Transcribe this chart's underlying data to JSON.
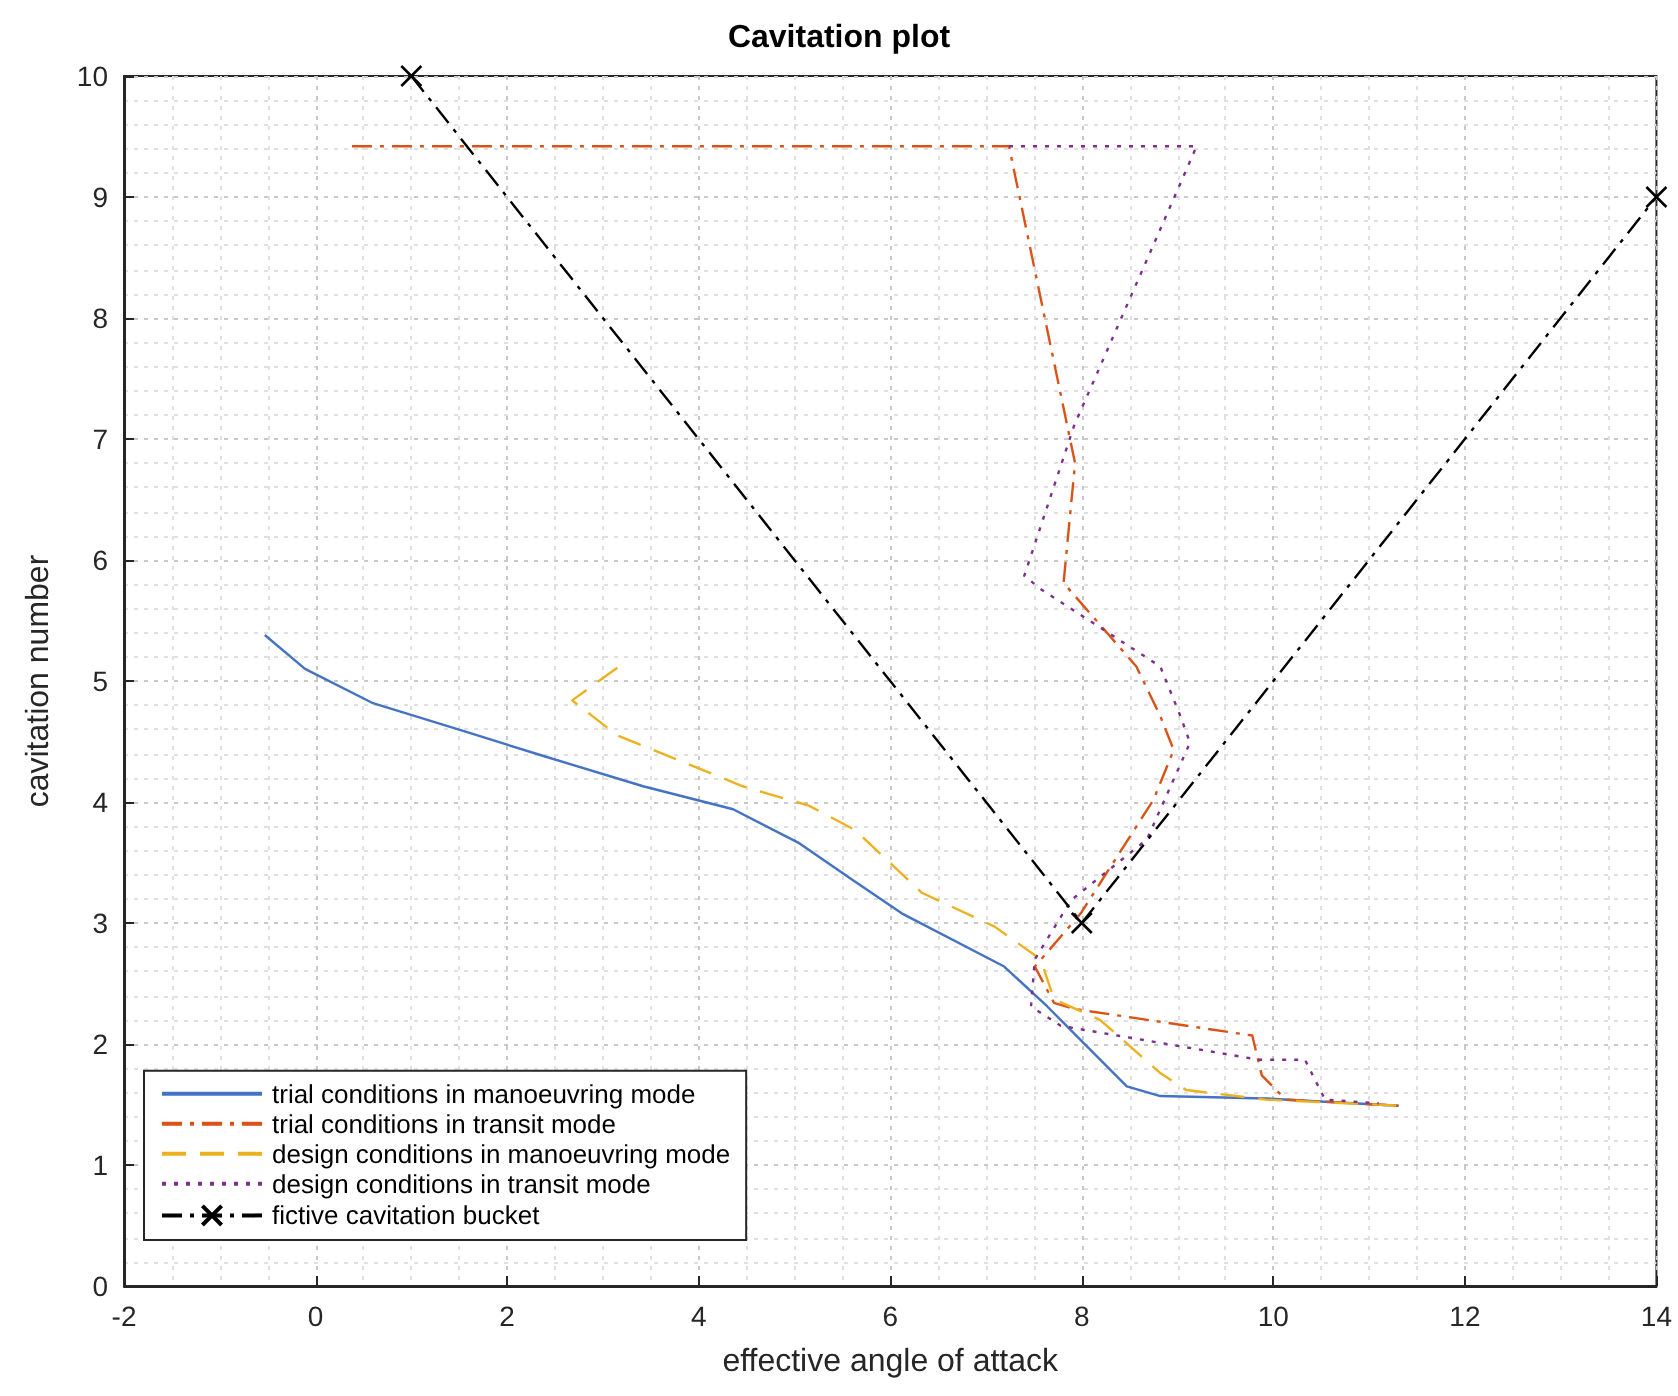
{
  "chart_data": {
    "type": "line",
    "title": "Cavitation plot",
    "xlabel": "effective angle of attack",
    "ylabel": "cavitation number",
    "xlim": [
      -2,
      14
    ],
    "xticks": [
      -2,
      0,
      2,
      4,
      6,
      8,
      10,
      12,
      14
    ],
    "ylim": [
      0,
      10
    ],
    "yticks": [
      0,
      1,
      2,
      3,
      4,
      5,
      6,
      7,
      8,
      9,
      10
    ],
    "grid": true,
    "legend": "bottom left",
    "marker": "none",
    "series": [
      {
        "name": "trial conditions in manoeuvring mode",
        "color": "#4472c4",
        "line_style": "solid",
        "x": [
          -0.53,
          -0.11,
          0.59,
          1.49,
          2.38,
          3.42,
          4.36,
          5.05,
          5.6,
          6.12,
          7.19,
          7.64,
          8.47,
          8.82,
          9.92,
          11.31
        ],
        "values": [
          5.38,
          5.1,
          4.82,
          4.6,
          4.38,
          4.13,
          3.94,
          3.66,
          3.36,
          3.08,
          2.64,
          2.31,
          1.65,
          1.57,
          1.55,
          1.49
        ]
      },
      {
        "name": "trial conditions in transit mode",
        "color": "#d95319",
        "line_style": "dashdot",
        "x": [
          0.38,
          7.24,
          7.93,
          7.81,
          8.57,
          8.82,
          8.96,
          8.75,
          7.99,
          7.51,
          7.71,
          7.92,
          9.78,
          9.88,
          10.13,
          11.31
        ],
        "values": [
          9.42,
          9.42,
          6.8,
          5.81,
          5.12,
          4.71,
          4.43,
          4.02,
          3.08,
          2.64,
          2.34,
          2.29,
          2.07,
          1.74,
          1.54,
          1.49
        ]
      },
      {
        "name": "design conditions in manoeuvring mode",
        "color": "#edb120",
        "line_style": "dashed",
        "x": [
          3.15,
          2.68,
          3.15,
          4.46,
          5.15,
          5.63,
          6.33,
          7.09,
          7.57,
          7.71,
          8.19,
          8.82,
          9.09,
          9.92,
          11.34
        ],
        "values": [
          5.11,
          4.84,
          4.55,
          4.13,
          3.97,
          3.77,
          3.25,
          2.97,
          2.7,
          2.37,
          2.2,
          1.76,
          1.62,
          1.54,
          1.49
        ]
      },
      {
        "name": "design conditions in transit mode",
        "color": "#7e2f8e",
        "line_style": "dotted",
        "x": [
          7.24,
          9.2,
          7.92,
          7.4,
          7.57,
          8.82,
          9.03,
          9.13,
          8.68,
          7.89,
          7.51,
          7.47,
          7.78,
          9.85,
          10.33,
          10.54,
          11.1
        ],
        "values": [
          9.42,
          9.42,
          7.11,
          5.87,
          5.76,
          5.12,
          4.71,
          4.49,
          3.69,
          3.19,
          2.7,
          2.31,
          2.15,
          1.87,
          1.87,
          1.54,
          1.51
        ]
      },
      {
        "name": "fictive cavitation bucket",
        "color": "#000000",
        "line_style": "dashdot",
        "marker": "cross",
        "x": [
          1,
          8,
          14
        ],
        "values": [
          10,
          3,
          9
        ]
      }
    ]
  }
}
